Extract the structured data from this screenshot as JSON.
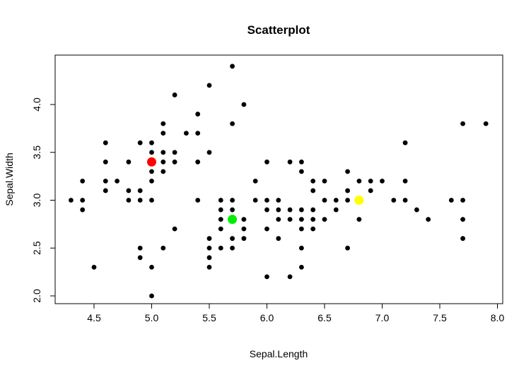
{
  "chart_data": {
    "type": "scatter",
    "title": "Scatterplot",
    "xlabel": "Sepal.Length",
    "ylabel": "Sepal.Width",
    "xlim": [
      4.3,
      7.9
    ],
    "ylim": [
      2.0,
      4.4
    ],
    "xticks": [
      "4.5",
      "5.0",
      "5.5",
      "6.0",
      "6.5",
      "7.0",
      "7.5",
      "8.0"
    ],
    "yticks": [
      "2.0",
      "2.5",
      "3.0",
      "3.5",
      "4.0"
    ],
    "grid": false,
    "point_color": "#000000",
    "points": [
      [
        4.3,
        3.0
      ],
      [
        4.4,
        3.2
      ],
      [
        4.4,
        3.0
      ],
      [
        4.4,
        2.9
      ],
      [
        4.5,
        2.3
      ],
      [
        4.6,
        3.6
      ],
      [
        4.6,
        3.4
      ],
      [
        4.6,
        3.2
      ],
      [
        4.6,
        3.1
      ],
      [
        4.7,
        3.2
      ],
      [
        4.8,
        3.4
      ],
      [
        4.8,
        3.1
      ],
      [
        4.8,
        3.0
      ],
      [
        4.9,
        3.6
      ],
      [
        4.9,
        3.1
      ],
      [
        4.9,
        3.0
      ],
      [
        4.9,
        2.5
      ],
      [
        4.9,
        2.4
      ],
      [
        5.0,
        3.6
      ],
      [
        5.0,
        3.5
      ],
      [
        5.0,
        3.3
      ],
      [
        5.0,
        3.2
      ],
      [
        5.0,
        3.0
      ],
      [
        5.0,
        2.3
      ],
      [
        5.0,
        2.0
      ],
      [
        5.1,
        3.8
      ],
      [
        5.1,
        3.7
      ],
      [
        5.1,
        3.5
      ],
      [
        5.1,
        3.4
      ],
      [
        5.1,
        3.3
      ],
      [
        5.1,
        2.5
      ],
      [
        5.2,
        4.1
      ],
      [
        5.2,
        3.5
      ],
      [
        5.2,
        3.4
      ],
      [
        5.2,
        2.7
      ],
      [
        5.3,
        3.7
      ],
      [
        5.4,
        3.9
      ],
      [
        5.4,
        3.7
      ],
      [
        5.4,
        3.4
      ],
      [
        5.4,
        3.0
      ],
      [
        5.5,
        4.2
      ],
      [
        5.5,
        3.5
      ],
      [
        5.5,
        2.6
      ],
      [
        5.5,
        2.5
      ],
      [
        5.5,
        2.4
      ],
      [
        5.5,
        2.3
      ],
      [
        5.6,
        3.0
      ],
      [
        5.6,
        2.9
      ],
      [
        5.6,
        2.8
      ],
      [
        5.6,
        2.7
      ],
      [
        5.6,
        2.5
      ],
      [
        5.7,
        4.4
      ],
      [
        5.7,
        3.8
      ],
      [
        5.7,
        3.0
      ],
      [
        5.7,
        2.9
      ],
      [
        5.7,
        2.6
      ],
      [
        5.7,
        2.5
      ],
      [
        5.8,
        4.0
      ],
      [
        5.8,
        2.8
      ],
      [
        5.8,
        2.7
      ],
      [
        5.8,
        2.6
      ],
      [
        5.9,
        3.2
      ],
      [
        5.9,
        3.0
      ],
      [
        6.0,
        3.4
      ],
      [
        6.0,
        3.0
      ],
      [
        6.0,
        2.9
      ],
      [
        6.0,
        2.7
      ],
      [
        6.0,
        2.2
      ],
      [
        6.1,
        3.0
      ],
      [
        6.1,
        2.9
      ],
      [
        6.1,
        2.8
      ],
      [
        6.1,
        2.6
      ],
      [
        6.2,
        3.4
      ],
      [
        6.2,
        2.9
      ],
      [
        6.2,
        2.8
      ],
      [
        6.2,
        2.2
      ],
      [
        6.3,
        3.4
      ],
      [
        6.3,
        3.3
      ],
      [
        6.3,
        2.9
      ],
      [
        6.3,
        2.8
      ],
      [
        6.3,
        2.7
      ],
      [
        6.3,
        2.5
      ],
      [
        6.3,
        2.3
      ],
      [
        6.4,
        3.2
      ],
      [
        6.4,
        3.1
      ],
      [
        6.4,
        2.9
      ],
      [
        6.4,
        2.8
      ],
      [
        6.4,
        2.7
      ],
      [
        6.5,
        3.2
      ],
      [
        6.5,
        3.0
      ],
      [
        6.5,
        2.8
      ],
      [
        6.6,
        3.0
      ],
      [
        6.6,
        2.9
      ],
      [
        6.7,
        3.3
      ],
      [
        6.7,
        3.1
      ],
      [
        6.7,
        3.0
      ],
      [
        6.7,
        2.5
      ],
      [
        6.8,
        3.2
      ],
      [
        6.8,
        2.8
      ],
      [
        6.9,
        3.2
      ],
      [
        6.9,
        3.1
      ],
      [
        7.0,
        3.2
      ],
      [
        7.1,
        3.0
      ],
      [
        7.2,
        3.6
      ],
      [
        7.2,
        3.2
      ],
      [
        7.2,
        3.0
      ],
      [
        7.3,
        2.9
      ],
      [
        7.4,
        2.8
      ],
      [
        7.6,
        3.0
      ],
      [
        7.7,
        3.8
      ],
      [
        7.7,
        3.0
      ],
      [
        7.7,
        2.8
      ],
      [
        7.7,
        2.6
      ],
      [
        7.9,
        3.8
      ]
    ],
    "highlights": [
      {
        "x": 5.0,
        "y": 3.4,
        "color": "#ff0000"
      },
      {
        "x": 5.7,
        "y": 2.8,
        "color": "#00ee00"
      },
      {
        "x": 6.8,
        "y": 3.0,
        "color": "#ffff00"
      }
    ]
  }
}
